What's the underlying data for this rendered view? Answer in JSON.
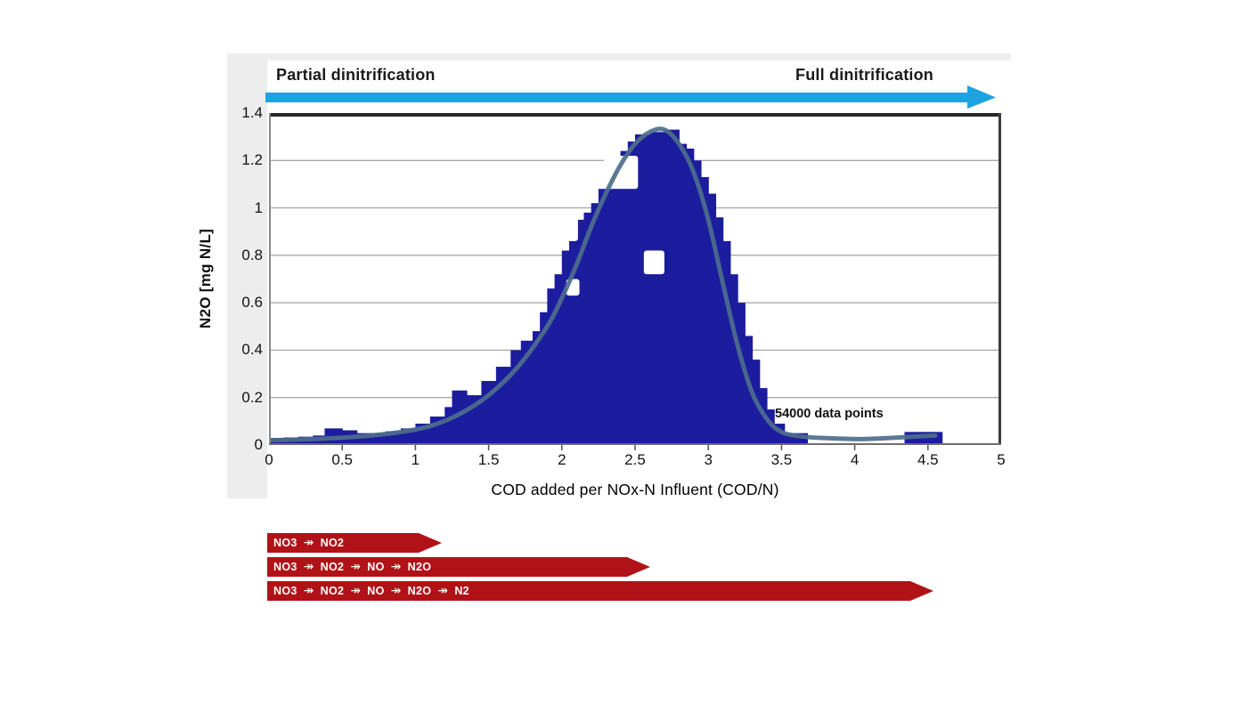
{
  "figure": {
    "top_banner": {
      "left_label": "Partial dinitrification",
      "right_label": "Full dinitrification",
      "arrow_color": "#1ca3e0"
    },
    "annotation": "54000 data points",
    "y_axis_title": "N2O [mg N/L]",
    "x_axis_title": "COD added per NOx-N Influent (COD/N)"
  },
  "chart_data": {
    "type": "area",
    "title": "",
    "xlabel": "COD added per NOx-N Influent (COD/N)",
    "ylabel": "N2O [mg N/L]",
    "xlim": [
      0,
      5
    ],
    "ylim": [
      0,
      1.4
    ],
    "x_ticks": [
      0,
      0.5,
      1,
      1.5,
      2,
      2.5,
      3,
      3.5,
      4,
      4.5,
      5
    ],
    "y_ticks": [
      0,
      0.2,
      0.4,
      0.6,
      0.8,
      1,
      1.2,
      1.4
    ],
    "grid": "horizontal",
    "legend": "none",
    "annotation": "54000 data points",
    "colors": {
      "navy": "#1c1c9e",
      "curve": "#4d6e8c",
      "grid": "#a9a9a9"
    },
    "series": [
      {
        "name": "data-point-cloud",
        "type": "filled-silhouette",
        "color": "#1c1c9e",
        "envelope": [
          [
            0,
            0.03
          ],
          [
            0.1,
            0.032
          ],
          [
            0.2,
            0.035
          ],
          [
            0.3,
            0.04
          ],
          [
            0.38,
            0.07
          ],
          [
            0.5,
            0.062
          ],
          [
            0.6,
            0.05
          ],
          [
            0.7,
            0.05
          ],
          [
            0.8,
            0.058
          ],
          [
            0.9,
            0.07
          ],
          [
            1.0,
            0.09
          ],
          [
            1.1,
            0.12
          ],
          [
            1.2,
            0.16
          ],
          [
            1.25,
            0.23
          ],
          [
            1.35,
            0.21
          ],
          [
            1.45,
            0.27
          ],
          [
            1.55,
            0.33
          ],
          [
            1.65,
            0.4
          ],
          [
            1.72,
            0.44
          ],
          [
            1.8,
            0.48
          ],
          [
            1.85,
            0.56
          ],
          [
            1.9,
            0.66
          ],
          [
            1.95,
            0.72
          ],
          [
            2.0,
            0.82
          ],
          [
            2.05,
            0.88
          ],
          [
            2.1,
            0.95
          ],
          [
            2.15,
            0.98
          ],
          [
            2.2,
            1.02
          ],
          [
            2.25,
            1.08
          ],
          [
            2.3,
            1.14
          ],
          [
            2.35,
            1.2
          ],
          [
            2.4,
            1.24
          ],
          [
            2.45,
            1.28
          ],
          [
            2.5,
            1.31
          ],
          [
            2.6,
            1.32
          ],
          [
            2.7,
            1.33
          ],
          [
            2.8,
            1.27
          ],
          [
            2.85,
            1.25
          ],
          [
            2.9,
            1.2
          ],
          [
            2.95,
            1.13
          ],
          [
            3.0,
            1.06
          ],
          [
            3.05,
            0.96
          ],
          [
            3.1,
            0.86
          ],
          [
            3.15,
            0.72
          ],
          [
            3.2,
            0.6
          ],
          [
            3.25,
            0.46
          ],
          [
            3.3,
            0.36
          ],
          [
            3.35,
            0.24
          ],
          [
            3.4,
            0.15
          ],
          [
            3.45,
            0.09
          ],
          [
            3.52,
            0.05
          ]
        ]
      },
      {
        "name": "trend-curve",
        "type": "line",
        "color": "#4d6e8c",
        "points": [
          [
            0,
            0.02
          ],
          [
            0.3,
            0.025
          ],
          [
            0.6,
            0.035
          ],
          [
            0.9,
            0.055
          ],
          [
            1.1,
            0.08
          ],
          [
            1.3,
            0.13
          ],
          [
            1.5,
            0.21
          ],
          [
            1.7,
            0.33
          ],
          [
            1.9,
            0.5
          ],
          [
            2.0,
            0.62
          ],
          [
            2.1,
            0.76
          ],
          [
            2.2,
            0.92
          ],
          [
            2.3,
            1.06
          ],
          [
            2.4,
            1.18
          ],
          [
            2.5,
            1.27
          ],
          [
            2.6,
            1.32
          ],
          [
            2.7,
            1.33
          ],
          [
            2.8,
            1.27
          ],
          [
            2.9,
            1.15
          ],
          [
            3.0,
            0.95
          ],
          [
            3.1,
            0.68
          ],
          [
            3.2,
            0.42
          ],
          [
            3.3,
            0.22
          ],
          [
            3.4,
            0.11
          ],
          [
            3.5,
            0.055
          ],
          [
            3.65,
            0.035
          ],
          [
            3.85,
            0.028
          ],
          [
            4.05,
            0.025
          ],
          [
            4.25,
            0.03
          ],
          [
            4.4,
            0.035
          ],
          [
            4.55,
            0.04
          ]
        ]
      }
    ],
    "outlier_bars": [
      {
        "x0": 3.53,
        "x1": 3.68,
        "h": 0.05
      },
      {
        "x0": 4.34,
        "x1": 4.6,
        "h": 0.055
      }
    ],
    "holes": [
      {
        "x": 2.29,
        "y": 1.22,
        "w": 0.23,
        "h": 0.14
      },
      {
        "x": 1.95,
        "y": 0.98,
        "w": 0.16,
        "h": 0.12
      },
      {
        "x": 2.56,
        "y": 0.82,
        "w": 0.14,
        "h": 0.1
      },
      {
        "x": 2.03,
        "y": 0.7,
        "w": 0.09,
        "h": 0.07
      }
    ]
  },
  "pathway_arrows": {
    "color": "#b11217",
    "items": [
      {
        "segments": [
          "NO3",
          "NO2"
        ]
      },
      {
        "segments": [
          "NO3",
          "NO2",
          "NO",
          "N2O"
        ]
      },
      {
        "segments": [
          "NO3",
          "NO2",
          "NO",
          "N2O",
          "N2"
        ]
      }
    ]
  }
}
